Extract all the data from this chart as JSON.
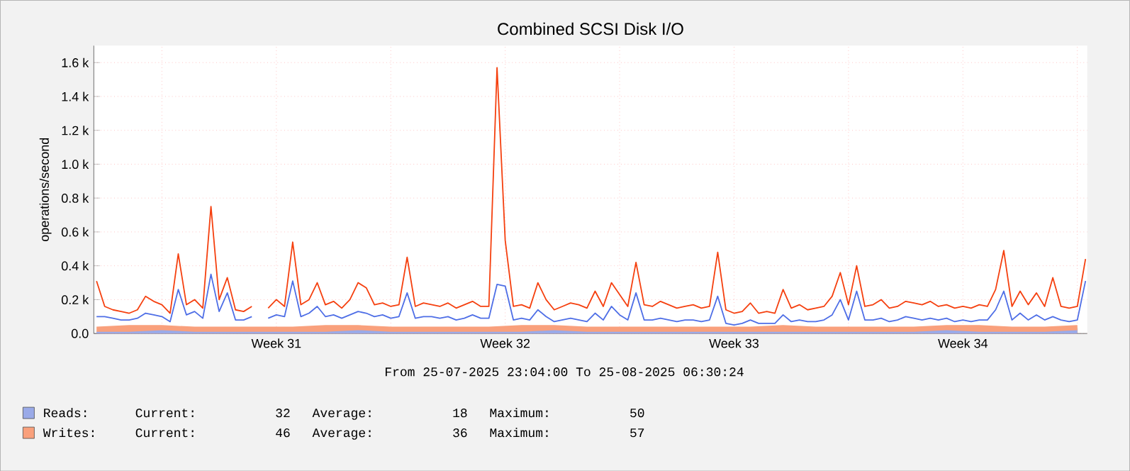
{
  "chart_data": {
    "type": "line",
    "title": "Combined SCSI Disk I/O",
    "ylabel": "operations/second",
    "xlim": [
      "2025-07-25T22:00",
      "2025-08-25T07:15"
    ],
    "xticks": [
      {
        "value": "2025-07-28T00:00",
        "label": null
      },
      {
        "value": "2025-07-31T12:00",
        "label": "Week 31"
      },
      {
        "value": "2025-08-04T00:00",
        "label": null
      },
      {
        "value": "2025-08-07T12:00",
        "label": "Week 32"
      },
      {
        "value": "2025-08-11T00:00",
        "label": null
      },
      {
        "value": "2025-08-14T12:00",
        "label": "Week 33"
      },
      {
        "value": "2025-08-18T00:00",
        "label": null
      },
      {
        "value": "2025-08-21T12:00",
        "label": "Week 34"
      },
      {
        "value": "2025-08-25T00:00",
        "label": null
      }
    ],
    "ylim": [
      0,
      1700
    ],
    "yticks": [
      {
        "value": 0,
        "label": "0.0"
      },
      {
        "value": 200,
        "label": "0.2 k"
      },
      {
        "value": 400,
        "label": "0.4 k"
      },
      {
        "value": 600,
        "label": "0.6 k"
      },
      {
        "value": 800,
        "label": "0.8 k"
      },
      {
        "value": 1000,
        "label": "1.0 k"
      },
      {
        "value": 1200,
        "label": "1.2 k"
      },
      {
        "value": 1400,
        "label": "1.4 k"
      },
      {
        "value": 1600,
        "label": "1.6 k"
      }
    ],
    "grid": true,
    "legend": "bottom",
    "annotations": [
      "From 25-07-2025 23:04:00 To 25-08-2025 06:30:24",
      "Current:",
      "32",
      "Average:",
      "18",
      "Maximum:",
      "50",
      "Current:",
      "46",
      "Average:",
      "36",
      "Maximum:",
      "57"
    ],
    "x": [
      "2025-07-26T00:00",
      "2025-07-26T06:00",
      "2025-07-26T12:00",
      "2025-07-26T18:00",
      "2025-07-27T00:00",
      "2025-07-27T06:00",
      "2025-07-27T12:00",
      "2025-07-27T18:00",
      "2025-07-28T00:00",
      "2025-07-28T06:00",
      "2025-07-28T12:00",
      "2025-07-28T18:00",
      "2025-07-29T00:00",
      "2025-07-29T06:00",
      "2025-07-29T12:00",
      "2025-07-29T18:00",
      "2025-07-30T00:00",
      "2025-07-30T06:00",
      "2025-07-30T12:00",
      "2025-07-30T18:00",
      "2025-07-31T00:00",
      "2025-07-31T06:00",
      "2025-07-31T12:00",
      "2025-07-31T18:00",
      "2025-08-01T00:00",
      "2025-08-01T06:00",
      "2025-08-01T12:00",
      "2025-08-01T18:00",
      "2025-08-02T00:00",
      "2025-08-02T06:00",
      "2025-08-02T12:00",
      "2025-08-02T18:00",
      "2025-08-03T00:00",
      "2025-08-03T06:00",
      "2025-08-03T12:00",
      "2025-08-03T18:00",
      "2025-08-04T00:00",
      "2025-08-04T06:00",
      "2025-08-04T12:00",
      "2025-08-04T18:00",
      "2025-08-05T00:00",
      "2025-08-05T06:00",
      "2025-08-05T12:00",
      "2025-08-05T18:00",
      "2025-08-06T00:00",
      "2025-08-06T06:00",
      "2025-08-06T12:00",
      "2025-08-06T18:00",
      "2025-08-07T00:00",
      "2025-08-07T06:00",
      "2025-08-07T12:00",
      "2025-08-07T18:00",
      "2025-08-08T00:00",
      "2025-08-08T06:00",
      "2025-08-08T12:00",
      "2025-08-08T18:00",
      "2025-08-09T00:00",
      "2025-08-09T06:00",
      "2025-08-09T12:00",
      "2025-08-09T18:00",
      "2025-08-10T00:00",
      "2025-08-10T06:00",
      "2025-08-10T12:00",
      "2025-08-10T18:00",
      "2025-08-11T00:00",
      "2025-08-11T06:00",
      "2025-08-11T12:00",
      "2025-08-11T18:00",
      "2025-08-12T00:00",
      "2025-08-12T06:00",
      "2025-08-12T12:00",
      "2025-08-12T18:00",
      "2025-08-13T00:00",
      "2025-08-13T06:00",
      "2025-08-13T12:00",
      "2025-08-13T18:00",
      "2025-08-14T00:00",
      "2025-08-14T06:00",
      "2025-08-14T12:00",
      "2025-08-14T18:00",
      "2025-08-15T00:00",
      "2025-08-15T06:00",
      "2025-08-15T12:00",
      "2025-08-15T18:00",
      "2025-08-16T00:00",
      "2025-08-16T06:00",
      "2025-08-16T12:00",
      "2025-08-16T18:00",
      "2025-08-17T00:00",
      "2025-08-17T06:00",
      "2025-08-17T12:00",
      "2025-08-17T18:00",
      "2025-08-18T00:00",
      "2025-08-18T06:00",
      "2025-08-18T12:00",
      "2025-08-18T18:00",
      "2025-08-19T00:00",
      "2025-08-19T06:00",
      "2025-08-19T12:00",
      "2025-08-19T18:00",
      "2025-08-20T00:00",
      "2025-08-20T06:00",
      "2025-08-20T12:00",
      "2025-08-20T18:00",
      "2025-08-21T00:00",
      "2025-08-21T06:00",
      "2025-08-21T12:00",
      "2025-08-21T18:00",
      "2025-08-22T00:00",
      "2025-08-22T06:00",
      "2025-08-22T12:00",
      "2025-08-22T18:00",
      "2025-08-23T00:00",
      "2025-08-23T06:00",
      "2025-08-23T12:00",
      "2025-08-23T18:00",
      "2025-08-24T00:00",
      "2025-08-24T06:00",
      "2025-08-24T12:00",
      "2025-08-24T18:00",
      "2025-08-25T00:00",
      "2025-08-25T06:00"
    ],
    "series": [
      {
        "name": "Writes:",
        "type": "area",
        "color": "#f9a07c",
        "x": [
          "2025-07-26",
          "2025-07-27",
          "2025-07-28",
          "2025-07-29",
          "2025-07-30",
          "2025-07-31",
          "2025-08-01",
          "2025-08-02",
          "2025-08-03",
          "2025-08-04",
          "2025-08-05",
          "2025-08-06",
          "2025-08-07",
          "2025-08-08",
          "2025-08-09",
          "2025-08-10",
          "2025-08-11",
          "2025-08-12",
          "2025-08-13",
          "2025-08-14",
          "2025-08-15",
          "2025-08-16",
          "2025-08-17",
          "2025-08-18",
          "2025-08-19",
          "2025-08-20",
          "2025-08-21",
          "2025-08-22",
          "2025-08-23",
          "2025-08-24",
          "2025-08-25"
        ],
        "values": [
          40,
          50,
          50,
          40,
          40,
          40,
          40,
          50,
          50,
          40,
          40,
          40,
          40,
          50,
          50,
          40,
          40,
          40,
          40,
          40,
          40,
          50,
          40,
          40,
          40,
          40,
          50,
          50,
          40,
          40,
          50
        ]
      },
      {
        "name": "Reads:",
        "type": "area",
        "color": "#9aaae8",
        "x": [
          "2025-07-26",
          "2025-07-27",
          "2025-07-28",
          "2025-07-29",
          "2025-07-30",
          "2025-07-31",
          "2025-08-01",
          "2025-08-02",
          "2025-08-03",
          "2025-08-04",
          "2025-08-05",
          "2025-08-06",
          "2025-08-07",
          "2025-08-08",
          "2025-08-09",
          "2025-08-10",
          "2025-08-11",
          "2025-08-12",
          "2025-08-13",
          "2025-08-14",
          "2025-08-15",
          "2025-08-16",
          "2025-08-17",
          "2025-08-18",
          "2025-08-19",
          "2025-08-20",
          "2025-08-21",
          "2025-08-22",
          "2025-08-23",
          "2025-08-24",
          "2025-08-25"
        ],
        "values": [
          10,
          10,
          20,
          10,
          10,
          10,
          10,
          10,
          20,
          10,
          10,
          10,
          10,
          10,
          20,
          10,
          10,
          10,
          10,
          10,
          10,
          10,
          10,
          10,
          10,
          10,
          20,
          10,
          10,
          10,
          20
        ]
      },
      {
        "color": "#f5400f",
        "values": [
          310,
          160,
          140,
          130,
          120,
          140,
          220,
          190,
          170,
          120,
          470,
          170,
          200,
          150,
          750,
          200,
          330,
          140,
          130,
          160,
          null,
          150,
          200,
          160,
          540,
          170,
          200,
          300,
          170,
          190,
          150,
          200,
          300,
          270,
          170,
          180,
          160,
          170,
          450,
          160,
          180,
          170,
          160,
          180,
          150,
          170,
          190,
          160,
          160,
          1570,
          550,
          160,
          170,
          150,
          300,
          200,
          140,
          160,
          180,
          170,
          150,
          250,
          160,
          300,
          230,
          160,
          420,
          170,
          160,
          190,
          170,
          150,
          160,
          170,
          150,
          160,
          480,
          140,
          120,
          130,
          180,
          120,
          130,
          120,
          260,
          150,
          170,
          140,
          150,
          160,
          220,
          360,
          170,
          400,
          160,
          170,
          200,
          150,
          160,
          190,
          180,
          170,
          190,
          160,
          170,
          150,
          160,
          150,
          170,
          160,
          260,
          490,
          160,
          250,
          170,
          240,
          160,
          330,
          160,
          150,
          160,
          440
        ]
      },
      {
        "color": "#4e6ee6",
        "values": [
          100,
          100,
          90,
          80,
          80,
          90,
          120,
          110,
          100,
          70,
          260,
          110,
          130,
          90,
          350,
          130,
          240,
          80,
          80,
          100,
          null,
          90,
          110,
          100,
          310,
          100,
          120,
          160,
          100,
          110,
          90,
          110,
          130,
          120,
          100,
          110,
          90,
          100,
          240,
          90,
          100,
          100,
          90,
          100,
          80,
          90,
          110,
          90,
          90,
          290,
          280,
          80,
          90,
          80,
          140,
          100,
          70,
          80,
          90,
          80,
          70,
          120,
          80,
          160,
          110,
          80,
          240,
          80,
          80,
          90,
          80,
          70,
          80,
          80,
          70,
          80,
          220,
          60,
          50,
          60,
          80,
          60,
          60,
          60,
          110,
          70,
          80,
          70,
          70,
          80,
          110,
          200,
          80,
          250,
          80,
          80,
          90,
          70,
          80,
          100,
          90,
          80,
          90,
          80,
          90,
          70,
          80,
          70,
          80,
          80,
          140,
          250,
          80,
          120,
          80,
          110,
          80,
          100,
          80,
          70,
          80,
          310
        ]
      }
    ]
  }
}
